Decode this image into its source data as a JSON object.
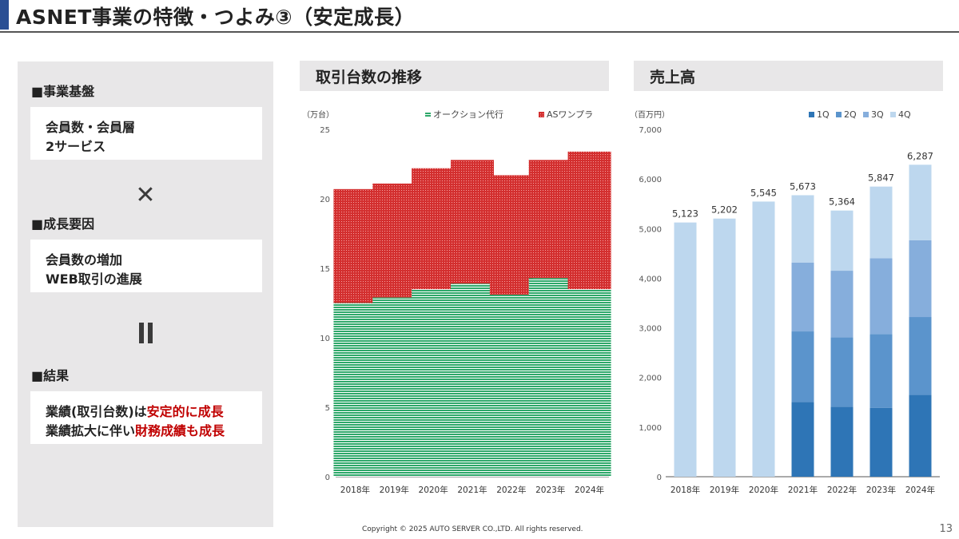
{
  "header": {
    "title": "ASNET事業の特徴・つよみ③（安定成長）"
  },
  "left_panel": {
    "sections": [
      {
        "heading": "■事業基盤",
        "lines": [
          [
            {
              "text": "会員数・会員層",
              "red": false
            }
          ],
          [
            {
              "text": "2サービス",
              "red": false
            }
          ]
        ]
      },
      {
        "heading": "■成長要因",
        "lines": [
          [
            {
              "text": "会員数の増加",
              "red": false
            }
          ],
          [
            {
              "text": "WEB取引の進展",
              "red": false
            }
          ]
        ]
      },
      {
        "heading": "■結果",
        "lines": [
          [
            {
              "text": "業績(取引台数)は",
              "red": false
            },
            {
              "text": "安定的に成長",
              "red": true
            }
          ],
          [
            {
              "text": "業績拡大に伴い",
              "red": false
            },
            {
              "text": "財務成績も成長",
              "red": true
            }
          ]
        ]
      }
    ],
    "symbols": {
      "times": "✕",
      "equals": "॥"
    }
  },
  "colors": {
    "accent": "#2a4f94",
    "green": "#2ea86a",
    "red": "#d32f2f",
    "q1": "#2e75b6",
    "q2": "#5b94cc",
    "q3": "#86aedc",
    "q4": "#bdd7ee",
    "highlight_text": "#c00000"
  },
  "chart_data": [
    {
      "type": "bar",
      "stacked": true,
      "title": "取引台数の推移",
      "ylabel": "（万台）",
      "xlabel": "",
      "ylim": [
        0,
        25
      ],
      "yticks": [
        0,
        5,
        10,
        15,
        20,
        25
      ],
      "grid": false,
      "legend_position": "top-right",
      "categories": [
        "2018年",
        "2019年",
        "2020年",
        "2021年",
        "2022年",
        "2023年",
        "2024年"
      ],
      "series": [
        {
          "name": "オークション代行",
          "color_key": "green",
          "pattern": "horizontal-stripes",
          "values": [
            12.5,
            12.9,
            13.5,
            13.9,
            13.1,
            14.3,
            13.5
          ]
        },
        {
          "name": "ASワンプラ",
          "color_key": "red",
          "pattern": "dots",
          "values": [
            8.2,
            8.2,
            8.7,
            8.9,
            8.6,
            8.5,
            9.9
          ]
        }
      ]
    },
    {
      "type": "bar",
      "stacked": true,
      "title": "売上高",
      "ylabel": "（百万円）",
      "xlabel": "",
      "ylim": [
        0,
        7000
      ],
      "yticks": [
        0,
        1000,
        2000,
        3000,
        4000,
        5000,
        6000,
        7000
      ],
      "ytick_labels": [
        "0",
        "1,000",
        "2,000",
        "3,000",
        "4,000",
        "5,000",
        "6,000",
        "7,000"
      ],
      "grid": false,
      "legend_position": "top-right",
      "categories": [
        "2018年",
        "2019年",
        "2020年",
        "2021年",
        "2022年",
        "2023年",
        "2024年"
      ],
      "series": [
        {
          "name": "1Q",
          "color_key": "q1",
          "values": [
            0,
            0,
            0,
            1508,
            1411,
            1389,
            1652
          ]
        },
        {
          "name": "2Q",
          "color_key": "q2",
          "values": [
            0,
            0,
            0,
            1420,
            1400,
            1486,
            1566
          ]
        },
        {
          "name": "3Q",
          "color_key": "q3",
          "values": [
            0,
            0,
            0,
            1389,
            1340,
            1529,
            1549
          ]
        },
        {
          "name": "4Q",
          "color_key": "q4",
          "values": [
            5123,
            5202,
            5545,
            1356,
            1213,
            1443,
            1520
          ]
        }
      ],
      "totals": [
        5123,
        5202,
        5545,
        5673,
        5364,
        5847,
        6287
      ],
      "total_labels": [
        "5,123",
        "5,202",
        "5,545",
        "5,673",
        "5,364",
        "5,847",
        "6,287"
      ]
    }
  ],
  "footer": {
    "copyright": "Copyright © 2025 AUTO SERVER CO.,LTD.  All rights reserved.",
    "page_number": "13"
  }
}
